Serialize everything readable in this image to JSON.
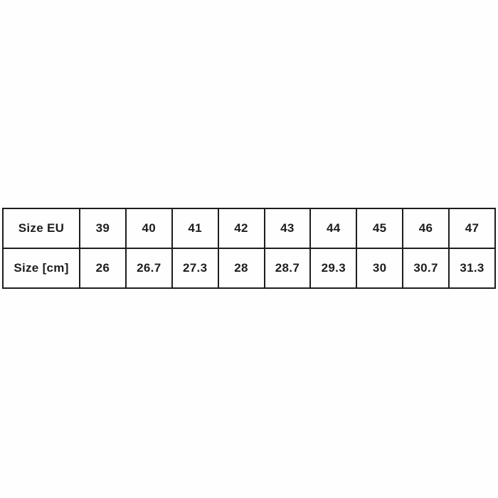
{
  "colors": {
    "background": "#fefefe",
    "border": "#1d1d1b",
    "text": "#1d1d1b"
  },
  "chart_data": {
    "type": "table",
    "rows": [
      {
        "header": "Size EU",
        "values": [
          "39",
          "40",
          "41",
          "42",
          "43",
          "44",
          "45",
          "46",
          "47"
        ]
      },
      {
        "header": "Size [cm]",
        "values": [
          "26",
          "26.7",
          "27.3",
          "28",
          "28.7",
          "29.3",
          "30",
          "30.7",
          "31.3"
        ]
      }
    ]
  }
}
